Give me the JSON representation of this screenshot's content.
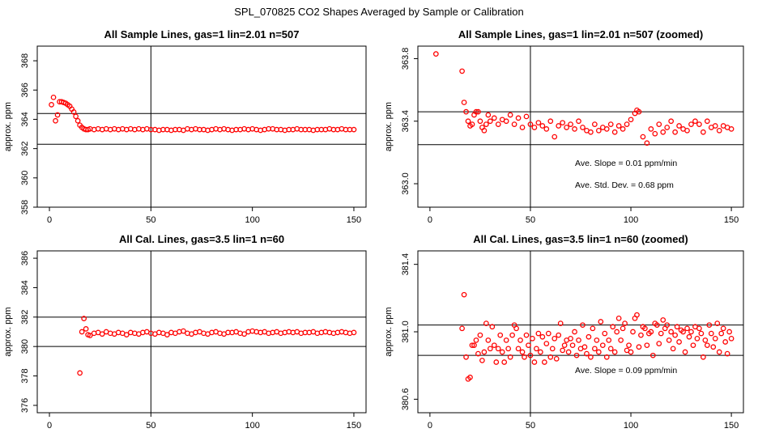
{
  "figure_title": "SPL_070825  CO2 Shapes Averaged by Sample or Calibration",
  "chart_data": [
    {
      "type": "scatter",
      "title": "All Sample Lines, gas=1 lin=2.01 n=507",
      "xlabel": "",
      "ylabel": "approx. ppm",
      "xlim": [
        -6,
        156
      ],
      "ylim": [
        358,
        369
      ],
      "xticks": [
        0,
        50,
        100,
        150
      ],
      "xtick_labels": [
        "0",
        "50",
        "100",
        "150"
      ],
      "yticks": [
        358,
        360,
        362,
        364,
        366,
        368
      ],
      "ytick_labels": [
        "358",
        "360",
        "362",
        "364",
        "366",
        "368"
      ],
      "hlines": [
        364.4,
        362.3
      ],
      "vlines": [
        50
      ],
      "point_color": "#ff0000",
      "x": [
        1,
        2,
        3,
        4,
        5,
        6,
        7,
        8,
        9,
        10,
        11,
        12,
        13,
        14,
        15,
        16,
        17,
        18,
        19,
        20,
        22,
        24,
        26,
        28,
        30,
        32,
        34,
        36,
        38,
        40,
        42,
        44,
        46,
        48,
        50,
        52,
        54,
        56,
        58,
        60,
        62,
        64,
        66,
        68,
        70,
        72,
        74,
        76,
        78,
        80,
        82,
        84,
        86,
        88,
        90,
        92,
        94,
        96,
        98,
        100,
        102,
        104,
        106,
        108,
        110,
        112,
        114,
        116,
        118,
        120,
        122,
        124,
        126,
        128,
        130,
        132,
        134,
        136,
        138,
        140,
        142,
        144,
        146,
        148,
        150
      ],
      "y": [
        365.0,
        365.5,
        363.9,
        364.3,
        365.2,
        365.2,
        365.15,
        365.1,
        365.0,
        364.9,
        364.7,
        364.5,
        364.2,
        363.9,
        363.6,
        363.45,
        363.35,
        363.3,
        363.3,
        363.35,
        363.3,
        363.35,
        363.3,
        363.35,
        363.3,
        363.35,
        363.3,
        363.35,
        363.3,
        363.35,
        363.3,
        363.35,
        363.3,
        363.35,
        363.3,
        363.3,
        363.25,
        363.3,
        363.3,
        363.25,
        363.3,
        363.3,
        363.25,
        363.35,
        363.3,
        363.35,
        363.3,
        363.3,
        363.25,
        363.3,
        363.35,
        363.3,
        363.35,
        363.3,
        363.25,
        363.3,
        363.3,
        363.35,
        363.3,
        363.35,
        363.3,
        363.25,
        363.3,
        363.35,
        363.35,
        363.3,
        363.3,
        363.25,
        363.3,
        363.3,
        363.35,
        363.3,
        363.3,
        363.3,
        363.25,
        363.3,
        363.3,
        363.3,
        363.35,
        363.3,
        363.3,
        363.35,
        363.3,
        363.3,
        363.3
      ],
      "annotations": []
    },
    {
      "type": "scatter",
      "title": "All Sample Lines, gas=1 lin=2.01 n=507 (zoomed)",
      "xlabel": "",
      "ylabel": "approx. ppm",
      "xlim": [
        -6,
        156
      ],
      "ylim": [
        362.85,
        363.88
      ],
      "xticks": [
        0,
        50,
        100,
        150
      ],
      "xtick_labels": [
        "0",
        "50",
        "100",
        "150"
      ],
      "yticks": [
        363.0,
        363.4,
        363.8
      ],
      "ytick_labels": [
        "363.0",
        "363.4",
        "363.8"
      ],
      "hlines": [
        363.46,
        363.25
      ],
      "vlines": [
        50
      ],
      "point_color": "#ff0000",
      "x": [
        3,
        16,
        17,
        18,
        19,
        20,
        21,
        22,
        23,
        24,
        25,
        26,
        27,
        28,
        29,
        30,
        32,
        34,
        36,
        38,
        40,
        42,
        44,
        46,
        48,
        50,
        52,
        54,
        56,
        58,
        60,
        62,
        64,
        66,
        68,
        70,
        72,
        74,
        76,
        78,
        80,
        82,
        84,
        86,
        88,
        90,
        92,
        94,
        96,
        98,
        100,
        102,
        103,
        104,
        106,
        108,
        110,
        112,
        114,
        116,
        118,
        120,
        122,
        124,
        126,
        128,
        130,
        132,
        134,
        136,
        138,
        140,
        142,
        144,
        146,
        148,
        150
      ],
      "y": [
        363.83,
        363.72,
        363.52,
        363.46,
        363.4,
        363.37,
        363.38,
        363.44,
        363.46,
        363.46,
        363.4,
        363.36,
        363.34,
        363.38,
        363.44,
        363.4,
        363.42,
        363.38,
        363.41,
        363.4,
        363.44,
        363.38,
        363.42,
        363.36,
        363.43,
        363.38,
        363.36,
        363.39,
        363.37,
        363.35,
        363.4,
        363.3,
        363.37,
        363.39,
        363.36,
        363.38,
        363.35,
        363.4,
        363.36,
        363.34,
        363.33,
        363.38,
        363.34,
        363.36,
        363.35,
        363.38,
        363.33,
        363.37,
        363.35,
        363.38,
        363.41,
        363.45,
        363.47,
        363.46,
        363.3,
        363.26,
        363.35,
        363.32,
        363.38,
        363.33,
        363.36,
        363.4,
        363.33,
        363.37,
        363.35,
        363.34,
        363.38,
        363.4,
        363.38,
        363.33,
        363.4,
        363.36,
        363.37,
        363.34,
        363.37,
        363.36,
        363.35
      ],
      "annotations": [
        "Ave. Slope =  0.01  ppm/min",
        "Ave. Std. Dev. =  0.68  ppm"
      ]
    },
    {
      "type": "scatter",
      "title": "All Cal. Lines, gas=3.5 lin=1 n=60",
      "xlabel": "",
      "ylabel": "approx. ppm",
      "xlim": [
        -6,
        156
      ],
      "ylim": [
        375.5,
        386.5
      ],
      "xticks": [
        0,
        50,
        100,
        150
      ],
      "xtick_labels": [
        "0",
        "50",
        "100",
        "150"
      ],
      "yticks": [
        376,
        378,
        380,
        382,
        384,
        386
      ],
      "ytick_labels": [
        "376",
        "378",
        "380",
        "382",
        "384",
        "386"
      ],
      "hlines": [
        382.0,
        380.0
      ],
      "vlines": [
        50
      ],
      "point_color": "#ff0000",
      "x": [
        15,
        16,
        17,
        18,
        19,
        20,
        22,
        24,
        26,
        28,
        30,
        32,
        34,
        36,
        38,
        40,
        42,
        44,
        46,
        48,
        50,
        52,
        54,
        56,
        58,
        60,
        62,
        64,
        66,
        68,
        70,
        72,
        74,
        76,
        78,
        80,
        82,
        84,
        86,
        88,
        90,
        92,
        94,
        96,
        98,
        100,
        102,
        104,
        106,
        108,
        110,
        112,
        114,
        116,
        118,
        120,
        122,
        124,
        126,
        128,
        130,
        132,
        134,
        136,
        138,
        140,
        142,
        144,
        146,
        148,
        150
      ],
      "y": [
        378.2,
        381.0,
        381.9,
        381.2,
        380.8,
        380.75,
        380.9,
        380.95,
        380.85,
        381.0,
        380.9,
        380.85,
        380.95,
        380.9,
        380.8,
        380.95,
        380.9,
        380.85,
        380.95,
        381.0,
        380.9,
        380.85,
        380.95,
        380.9,
        380.8,
        380.95,
        380.9,
        381.0,
        381.05,
        380.9,
        380.85,
        380.95,
        381.0,
        380.9,
        380.85,
        380.95,
        381.0,
        380.9,
        380.85,
        380.95,
        380.95,
        381.0,
        380.9,
        380.85,
        381.0,
        381.05,
        381.0,
        380.95,
        381.0,
        380.9,
        380.95,
        381.0,
        380.9,
        380.95,
        381.0,
        380.95,
        381.0,
        380.9,
        380.95,
        380.95,
        381.0,
        380.9,
        380.95,
        381.0,
        380.95,
        380.9,
        380.95,
        381.0,
        380.95,
        380.9,
        380.95
      ],
      "annotations": []
    },
    {
      "type": "scatter",
      "title": "All Cal. Lines, gas=3.5 lin=1 n=60 (zoomed)",
      "xlabel": "",
      "ylabel": "approx. ppm",
      "xlim": [
        -6,
        156
      ],
      "ylim": [
        380.52,
        381.48
      ],
      "xticks": [
        0,
        50,
        100,
        150
      ],
      "xtick_labels": [
        "0",
        "50",
        "100",
        "150"
      ],
      "yticks": [
        380.6,
        381.0,
        381.4
      ],
      "ytick_labels": [
        "380.6",
        "381.0",
        "381.4"
      ],
      "hlines": [
        381.04,
        380.86
      ],
      "vlines": [
        50
      ],
      "point_color": "#ff0000",
      "x": [
        16,
        17,
        18,
        19,
        20,
        21,
        22,
        23,
        24,
        25,
        26,
        27,
        28,
        29,
        30,
        31,
        32,
        33,
        34,
        35,
        36,
        37,
        38,
        39,
        40,
        41,
        42,
        43,
        44,
        45,
        46,
        47,
        48,
        49,
        50,
        51,
        52,
        53,
        54,
        55,
        56,
        57,
        58,
        59,
        60,
        61,
        62,
        63,
        64,
        65,
        66,
        67,
        68,
        69,
        70,
        71,
        72,
        73,
        74,
        75,
        76,
        77,
        78,
        79,
        80,
        81,
        82,
        83,
        84,
        85,
        86,
        87,
        88,
        89,
        90,
        91,
        92,
        93,
        94,
        95,
        96,
        97,
        98,
        99,
        100,
        101,
        102,
        103,
        104,
        105,
        106,
        107,
        108,
        109,
        110,
        111,
        112,
        113,
        114,
        115,
        116,
        117,
        118,
        119,
        120,
        121,
        122,
        123,
        124,
        125,
        126,
        127,
        128,
        129,
        130,
        131,
        132,
        133,
        134,
        135,
        136,
        137,
        138,
        139,
        140,
        141,
        142,
        143,
        144,
        145,
        146,
        147,
        148,
        149,
        150
      ],
      "y": [
        381.02,
        381.22,
        380.85,
        380.72,
        380.73,
        380.92,
        380.92,
        380.95,
        380.87,
        380.98,
        380.83,
        380.88,
        381.05,
        380.95,
        380.9,
        381.03,
        380.92,
        380.82,
        380.9,
        380.98,
        380.88,
        380.82,
        380.95,
        380.9,
        380.85,
        380.98,
        381.04,
        381.02,
        380.9,
        380.95,
        380.88,
        380.85,
        380.98,
        380.92,
        380.86,
        380.96,
        380.82,
        380.9,
        380.99,
        380.88,
        380.97,
        380.82,
        380.93,
        380.99,
        380.85,
        380.9,
        380.96,
        380.84,
        380.98,
        381.05,
        380.89,
        380.92,
        380.95,
        380.88,
        380.96,
        380.92,
        381.0,
        380.86,
        380.95,
        380.9,
        381.04,
        380.91,
        380.87,
        380.97,
        380.85,
        381.02,
        380.9,
        380.95,
        380.88,
        381.06,
        380.92,
        380.99,
        380.85,
        380.95,
        380.9,
        381.03,
        380.88,
        381.0,
        381.08,
        380.95,
        381.02,
        381.05,
        380.89,
        380.92,
        380.88,
        381.0,
        381.08,
        381.1,
        380.91,
        380.98,
        381.03,
        381.02,
        380.92,
        380.99,
        381.0,
        380.86,
        381.05,
        381.04,
        380.93,
        380.99,
        381.07,
        381.02,
        381.04,
        380.95,
        381.0,
        380.9,
        380.98,
        381.03,
        380.94,
        381.01,
        381.0,
        380.88,
        381.02,
        380.97,
        381.0,
        380.92,
        381.03,
        380.96,
        381.02,
        380.99,
        380.85,
        380.95,
        380.92,
        381.04,
        380.99,
        380.91,
        380.96,
        381.05,
        380.88,
        380.99,
        381.02,
        380.94,
        380.87,
        381.0,
        380.96
      ],
      "annotations": [
        "Ave. Slope =  0.09  ppm/min"
      ]
    }
  ]
}
